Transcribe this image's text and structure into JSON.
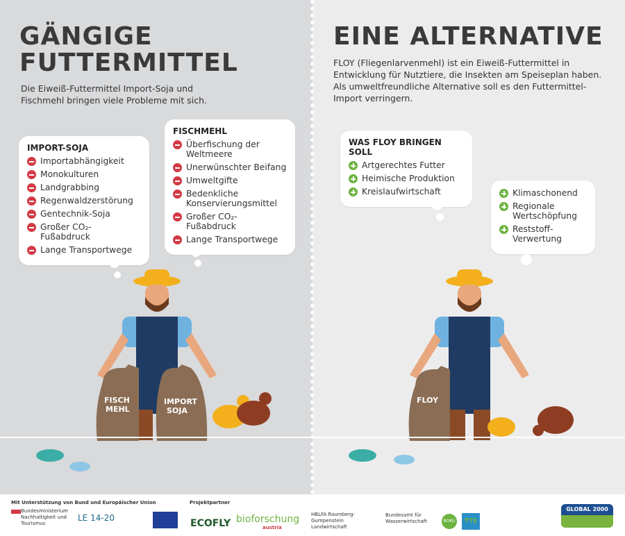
{
  "left": {
    "title_line1": "GÄNGIGE",
    "title_line2": "FUTTERMITTEL",
    "intro": "Die Eiweiß-Futtermittel Import-Soja und Fischmehl bringen viele Probleme mit sich.",
    "soja": {
      "heading": "IMPORT-SOJA",
      "icon": "minus-circle-icon",
      "items": [
        "Importabhängigkeit",
        "Monokulturen",
        "Landgrabbing",
        "Regenwaldzerstörung",
        "Gentechnik-Soja",
        "Großer CO₂-Fußabdruck",
        "Lange Transportwege"
      ]
    },
    "fisch": {
      "heading": "FISCHMEHL",
      "icon": "minus-circle-icon",
      "items": [
        "Überfischung der Weltmeere",
        "Unerwünschter Beifang",
        "Umweltgifte",
        "Bedenkliche Konservierungsmittel",
        "Großer CO₂-Fußabdruck",
        "Lange Transportwege"
      ]
    },
    "sack1": "FISCH MEHL",
    "sack2": "IMPORT SOJA"
  },
  "right": {
    "title": "EINE ALTERNATIVE",
    "intro": "FLOY (Fliegenlarvenmehl) ist ein Eiweiß-Futtermittel in Entwicklung für Nutztiere, die Insekten am Speiseplan haben. Als umweltfreundliche Alternative soll es den Futtermittel-Import verringern.",
    "box1": {
      "heading": "WAS FLOY BRINGEN SOLL",
      "icon": "plus-circle-icon",
      "items": [
        "Artgerechtes Futter",
        "Heimische Produktion",
        "Kreislaufwirtschaft"
      ]
    },
    "box2": {
      "items": [
        "Klimaschonend",
        "Regionale Wertschöpfung",
        "Reststoff-Verwertung"
      ]
    },
    "sack": "FLOY"
  },
  "footer": {
    "support": "Mit Unterstützung von Bund und Europäischer Union",
    "ministry": "Bundesministerium Nachhaltigkeit und Tourismus",
    "le": "LE 14-20",
    "partners": "Projektpartner",
    "ecofly": "ECOFLY",
    "bio": "bioforschung",
    "bio_sub": "austria",
    "hblfa": "HBLFA Raumberg-Gumpenstein Landwirtschaft",
    "baw": "Bundesamt für Wasserwirtschaft",
    "boku": "BOKU",
    "tte": "TTE",
    "global": "GLOBAL 2000"
  },
  "colors": {
    "minus": "#d33a45",
    "plus": "#6cb33f",
    "left_bg": "#d9dadc",
    "right_bg": "#ececed",
    "global_blue": "#1d4f91",
    "global_green": "#7ab33e"
  }
}
